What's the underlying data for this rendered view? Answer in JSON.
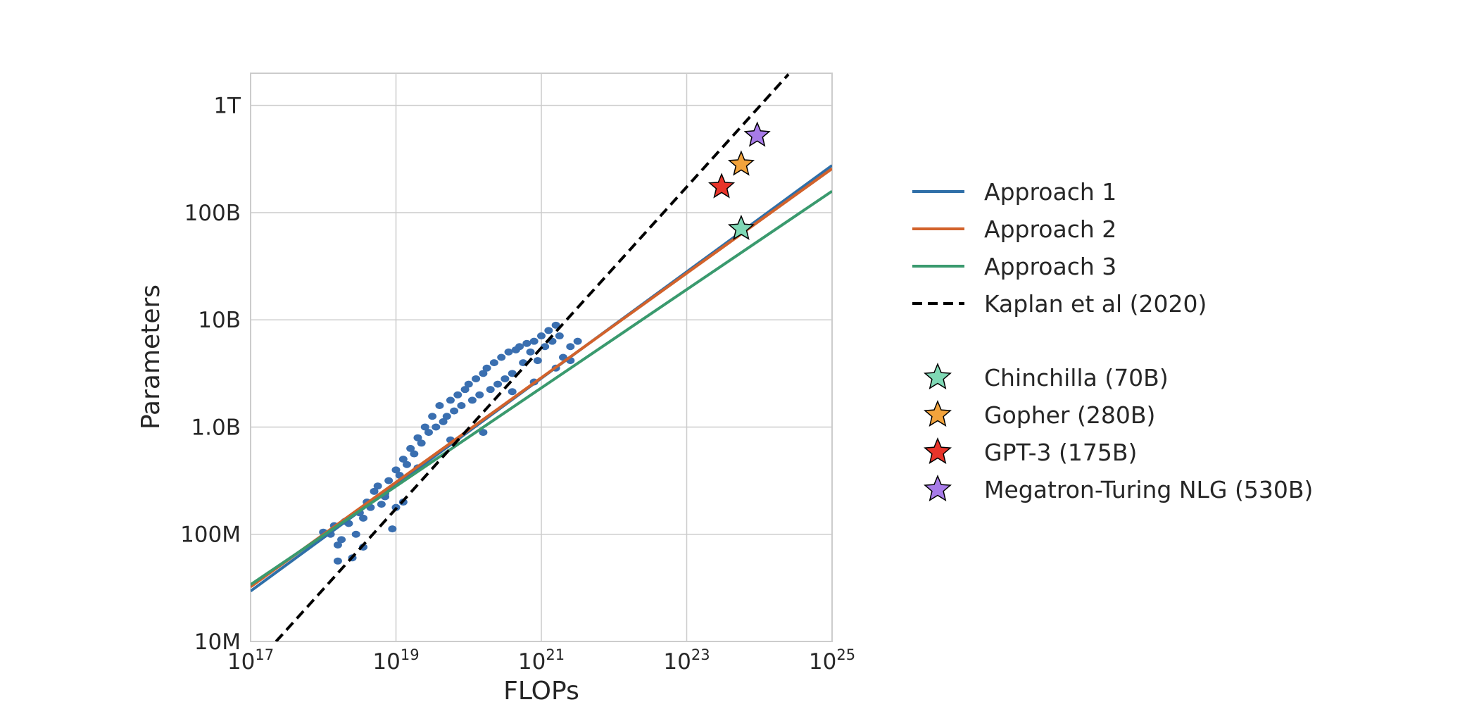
{
  "chart_data": {
    "type": "scatter",
    "title": "",
    "xlabel": "FLOPs",
    "ylabel": "Parameters",
    "x_scale": "log10",
    "y_scale": "log10",
    "xlim_log10": [
      17,
      25
    ],
    "ylim_log10": [
      7,
      12.3
    ],
    "x_ticks": [
      {
        "log10": 17,
        "base": "10",
        "exp": "17"
      },
      {
        "log10": 19,
        "base": "10",
        "exp": "19"
      },
      {
        "log10": 21,
        "base": "10",
        "exp": "21"
      },
      {
        "log10": 23,
        "base": "10",
        "exp": "23"
      },
      {
        "log10": 25,
        "base": "10",
        "exp": "25"
      }
    ],
    "y_ticks": [
      {
        "log10": 7,
        "label": "10M"
      },
      {
        "log10": 8,
        "label": "100M"
      },
      {
        "log10": 9,
        "label": "1.0B"
      },
      {
        "log10": 10,
        "label": "10B"
      },
      {
        "log10": 11,
        "label": "100B"
      },
      {
        "log10": 12,
        "label": "1T"
      }
    ],
    "grid": true,
    "scatter": {
      "name": "Training runs",
      "color": "#3a6fb0",
      "points_log10": [
        [
          18.0,
          8.02
        ],
        [
          18.1,
          8.0
        ],
        [
          18.15,
          8.08
        ],
        [
          18.2,
          7.9
        ],
        [
          18.25,
          7.95
        ],
        [
          18.3,
          8.12
        ],
        [
          18.35,
          8.1
        ],
        [
          18.4,
          7.78
        ],
        [
          18.45,
          8.0
        ],
        [
          18.5,
          8.2
        ],
        [
          18.55,
          8.15
        ],
        [
          18.6,
          8.3
        ],
        [
          18.65,
          8.25
        ],
        [
          18.7,
          8.4
        ],
        [
          18.75,
          8.45
        ],
        [
          18.8,
          8.28
        ],
        [
          18.85,
          8.35
        ],
        [
          18.9,
          8.5
        ],
        [
          18.95,
          8.05
        ],
        [
          19.0,
          8.6
        ],
        [
          19.0,
          8.25
        ],
        [
          19.05,
          8.55
        ],
        [
          19.1,
          8.7
        ],
        [
          19.1,
          8.3
        ],
        [
          19.15,
          8.65
        ],
        [
          19.2,
          8.8
        ],
        [
          19.25,
          8.75
        ],
        [
          19.3,
          8.9
        ],
        [
          19.35,
          8.85
        ],
        [
          19.4,
          9.0
        ],
        [
          19.45,
          8.95
        ],
        [
          19.5,
          9.1
        ],
        [
          19.55,
          9.0
        ],
        [
          19.6,
          9.2
        ],
        [
          19.65,
          9.05
        ],
        [
          19.7,
          9.1
        ],
        [
          19.75,
          9.25
        ],
        [
          19.8,
          9.15
        ],
        [
          19.85,
          9.3
        ],
        [
          19.9,
          9.2
        ],
        [
          19.95,
          9.35
        ],
        [
          20.0,
          9.4
        ],
        [
          20.05,
          9.25
        ],
        [
          20.1,
          9.45
        ],
        [
          20.15,
          9.3
        ],
        [
          20.2,
          9.5
        ],
        [
          20.25,
          9.55
        ],
        [
          20.3,
          9.35
        ],
        [
          20.35,
          9.6
        ],
        [
          20.4,
          9.4
        ],
        [
          20.45,
          9.65
        ],
        [
          20.5,
          9.45
        ],
        [
          20.55,
          9.7
        ],
        [
          20.6,
          9.5
        ],
        [
          20.65,
          9.72
        ],
        [
          20.7,
          9.75
        ],
        [
          20.75,
          9.6
        ],
        [
          20.8,
          9.78
        ],
        [
          20.85,
          9.7
        ],
        [
          20.9,
          9.8
        ],
        [
          20.95,
          9.62
        ],
        [
          21.0,
          9.85
        ],
        [
          21.05,
          9.75
        ],
        [
          21.1,
          9.9
        ],
        [
          21.15,
          9.8
        ],
        [
          21.2,
          9.95
        ],
        [
          21.25,
          9.85
        ],
        [
          21.3,
          9.65
        ],
        [
          21.4,
          9.75
        ],
        [
          21.5,
          9.8
        ],
        [
          18.2,
          7.75
        ],
        [
          18.55,
          7.88
        ],
        [
          18.85,
          8.38
        ],
        [
          19.3,
          8.62
        ],
        [
          19.75,
          8.88
        ],
        [
          20.2,
          8.95
        ],
        [
          20.6,
          9.33
        ],
        [
          20.9,
          9.42
        ],
        [
          21.2,
          9.55
        ],
        [
          21.4,
          9.62
        ]
      ]
    },
    "series": [
      {
        "name": "Approach 1",
        "color": "#2f6fa8",
        "style": "solid",
        "x_log10": [
          17,
          25
        ],
        "y_log10": [
          7.47,
          11.44
        ]
      },
      {
        "name": "Approach 2",
        "color": "#d2622b",
        "style": "solid",
        "x_log10": [
          17,
          25
        ],
        "y_log10": [
          7.51,
          11.41
        ]
      },
      {
        "name": "Approach 3",
        "color": "#3a9a6e",
        "style": "solid",
        "x_log10": [
          17,
          25
        ],
        "y_log10": [
          7.53,
          11.2
        ]
      },
      {
        "name": "Kaplan et al (2020)",
        "color": "#000000",
        "style": "dashed",
        "x_log10": [
          17.35,
          24.4
        ],
        "y_log10": [
          7.0,
          12.29
        ]
      }
    ],
    "models": [
      {
        "name": "Chinchilla (70B)",
        "color": "#7fd8b5",
        "flops_log10": 23.75,
        "params_log10": 10.85
      },
      {
        "name": "Gopher (280B)",
        "color": "#f2a33c",
        "flops_log10": 23.75,
        "params_log10": 11.45
      },
      {
        "name": "GPT-3 (175B)",
        "color": "#e8342a",
        "flops_log10": 23.48,
        "params_log10": 11.24
      },
      {
        "name": "Megatron-Turing NLG (530B)",
        "color": "#a77be8",
        "flops_log10": 23.97,
        "params_log10": 11.72
      }
    ],
    "legend_position": "right"
  }
}
